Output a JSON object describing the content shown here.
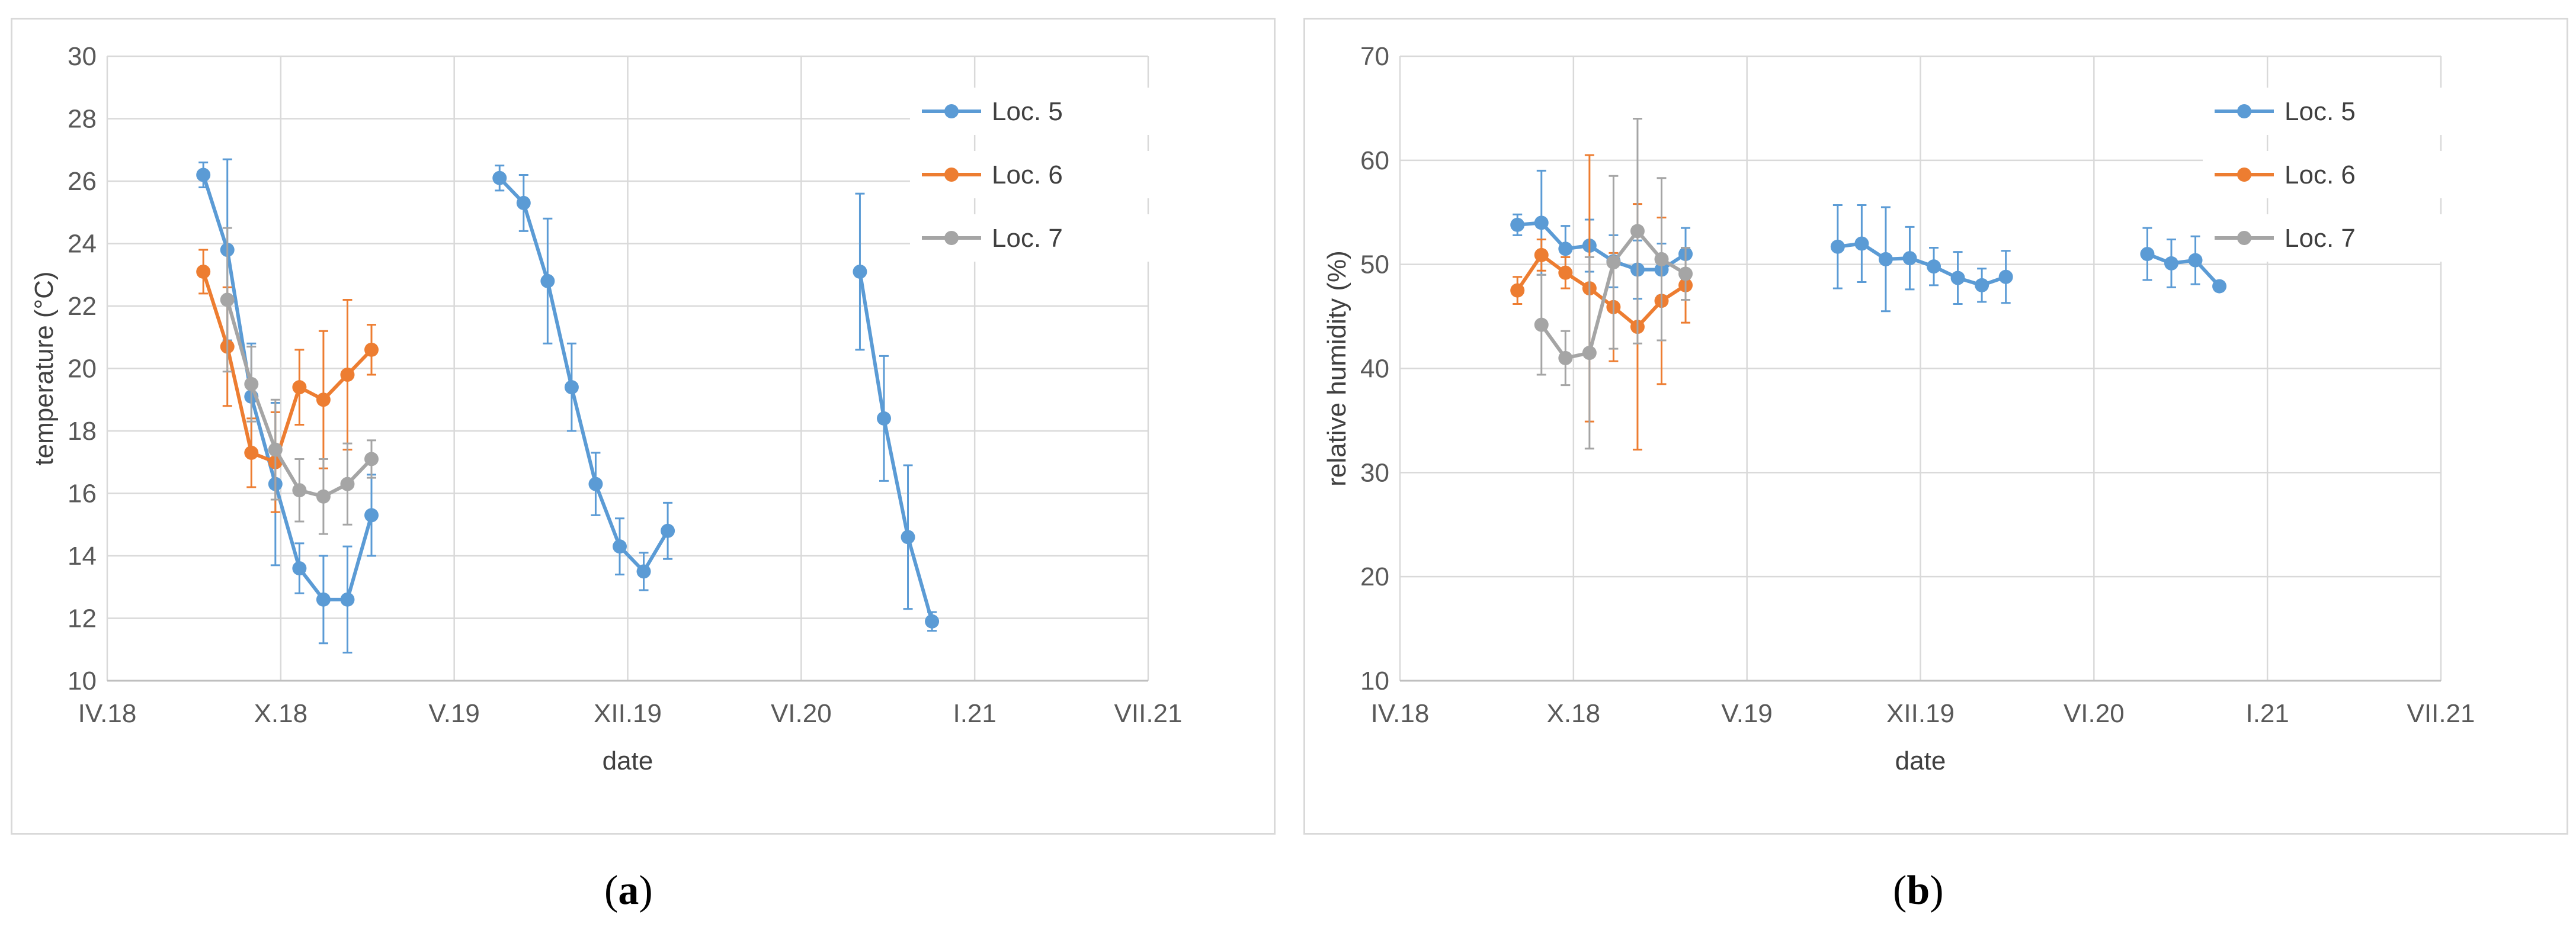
{
  "colors": {
    "loc5": "#5b9bd5",
    "loc6": "#ed7d31",
    "loc7": "#a5a5a5",
    "grid": "#d9d9d9",
    "text": "#595959"
  },
  "captions": {
    "a_letter": "a",
    "b_letter": "b"
  },
  "chart_data": [
    {
      "type": "line",
      "panel": "a",
      "title": "",
      "xlabel": "date",
      "ylabel": "temperature (°C)",
      "x_ticks": [
        "IV.18",
        "X.18",
        "V.19",
        "XII.19",
        "VI.20",
        "I.21",
        "VII.21"
      ],
      "x_range_months": [
        0,
        39
      ],
      "ylim": [
        10,
        30
      ],
      "y_ticks": [
        10,
        12,
        14,
        16,
        18,
        20,
        22,
        24,
        26,
        28,
        30
      ],
      "grid": true,
      "legend_position": "top-right",
      "series": [
        {
          "name": "Loc. 5",
          "color_key": "loc5",
          "segments": [
            [
              {
                "x": 3.6,
                "y": 26.2,
                "err": 0.4
              },
              {
                "x": 4.5,
                "y": 23.8,
                "err": 2.9
              },
              {
                "x": 5.4,
                "y": 19.1,
                "err": 1.7
              },
              {
                "x": 6.3,
                "y": 16.3,
                "err": 2.6
              },
              {
                "x": 7.2,
                "y": 13.6,
                "err": 0.8
              },
              {
                "x": 8.1,
                "y": 12.6,
                "err": 1.4
              },
              {
                "x": 9.0,
                "y": 12.6,
                "err": 1.7
              },
              {
                "x": 9.9,
                "y": 15.3,
                "err": 1.3
              }
            ],
            [
              {
                "x": 14.7,
                "y": 26.1,
                "err": 0.4
              },
              {
                "x": 15.6,
                "y": 25.3,
                "err": 0.9
              },
              {
                "x": 16.5,
                "y": 22.8,
                "err": 2.0
              },
              {
                "x": 17.4,
                "y": 19.4,
                "err": 1.4
              },
              {
                "x": 18.3,
                "y": 16.3,
                "err": 1.0
              },
              {
                "x": 19.2,
                "y": 14.3,
                "err": 0.9
              },
              {
                "x": 20.1,
                "y": 13.5,
                "err": 0.6
              },
              {
                "x": 21.0,
                "y": 14.8,
                "err": 0.9
              }
            ],
            [
              {
                "x": 28.2,
                "y": 23.1,
                "err": 2.5
              },
              {
                "x": 29.1,
                "y": 18.4,
                "err": 2.0
              },
              {
                "x": 30.0,
                "y": 14.6,
                "err": 2.3
              },
              {
                "x": 30.9,
                "y": 11.9,
                "err": 0.3
              }
            ]
          ]
        },
        {
          "name": "Loc. 6",
          "color_key": "loc6",
          "segments": [
            [
              {
                "x": 3.6,
                "y": 23.1,
                "err": 0.7
              },
              {
                "x": 4.5,
                "y": 20.7,
                "err": 1.9
              },
              {
                "x": 5.4,
                "y": 17.3,
                "err": 1.1
              },
              {
                "x": 6.3,
                "y": 17.0,
                "err": 1.6
              },
              {
                "x": 7.2,
                "y": 19.4,
                "err": 1.2
              },
              {
                "x": 8.1,
                "y": 19.0,
                "err": 2.2
              },
              {
                "x": 9.0,
                "y": 19.8,
                "err": 2.4
              },
              {
                "x": 9.9,
                "y": 20.6,
                "err": 0.8
              }
            ]
          ]
        },
        {
          "name": "Loc. 7",
          "color_key": "loc7",
          "segments": [
            [
              {
                "x": 4.5,
                "y": 22.2,
                "err": 2.3
              },
              {
                "x": 5.4,
                "y": 19.5,
                "err": 1.2
              },
              {
                "x": 6.3,
                "y": 17.4,
                "err": 1.6
              },
              {
                "x": 7.2,
                "y": 16.1,
                "err": 1.0
              },
              {
                "x": 8.1,
                "y": 15.9,
                "err": 1.2
              },
              {
                "x": 9.0,
                "y": 16.3,
                "err": 1.3
              },
              {
                "x": 9.9,
                "y": 17.1,
                "err": 0.6
              }
            ]
          ]
        }
      ]
    },
    {
      "type": "line",
      "panel": "b",
      "title": "",
      "xlabel": "date",
      "ylabel": "relative humidity (%)",
      "x_ticks": [
        "IV.18",
        "X.18",
        "V.19",
        "XII.19",
        "VI.20",
        "I.21",
        "VII.21"
      ],
      "x_range_months": [
        0,
        39
      ],
      "ylim": [
        10,
        70
      ],
      "y_ticks": [
        10,
        20,
        30,
        40,
        50,
        60,
        70
      ],
      "grid": true,
      "legend_position": "top-right",
      "series": [
        {
          "name": "Loc. 5",
          "color_key": "loc5",
          "segments": [
            [
              {
                "x": 4.4,
                "y": 53.8,
                "err": 1.0
              },
              {
                "x": 5.3,
                "y": 54.0,
                "err": 5.0
              },
              {
                "x": 6.2,
                "y": 51.5,
                "err": 2.2
              },
              {
                "x": 7.1,
                "y": 51.8,
                "err": 2.5
              },
              {
                "x": 8.0,
                "y": 50.3,
                "err": 2.5
              },
              {
                "x": 8.9,
                "y": 49.5,
                "err": 2.8
              },
              {
                "x": 9.8,
                "y": 49.5,
                "err": 2.5
              },
              {
                "x": 10.7,
                "y": 51.0,
                "err": 2.5
              }
            ],
            [
              {
                "x": 16.4,
                "y": 51.7,
                "err": 4.0
              },
              {
                "x": 17.3,
                "y": 52.0,
                "err": 3.7
              },
              {
                "x": 18.2,
                "y": 50.5,
                "err": 5.0
              },
              {
                "x": 19.1,
                "y": 50.6,
                "err": 3.0
              },
              {
                "x": 20.0,
                "y": 49.8,
                "err": 1.8
              },
              {
                "x": 20.9,
                "y": 48.7,
                "err": 2.5
              },
              {
                "x": 21.8,
                "y": 48.0,
                "err": 1.6
              },
              {
                "x": 22.7,
                "y": 48.8,
                "err": 2.5
              }
            ],
            [
              {
                "x": 28.0,
                "y": 51.0,
                "err": 2.5
              },
              {
                "x": 28.9,
                "y": 50.1,
                "err": 2.3
              },
              {
                "x": 29.8,
                "y": 50.4,
                "err": 2.3
              },
              {
                "x": 30.7,
                "y": 47.9,
                "err": 0.3
              }
            ]
          ]
        },
        {
          "name": "Loc. 6",
          "color_key": "loc6",
          "segments": [
            [
              {
                "x": 4.4,
                "y": 47.5,
                "err": 1.3
              },
              {
                "x": 5.3,
                "y": 50.9,
                "err": 1.5
              },
              {
                "x": 6.2,
                "y": 49.2,
                "err": 1.5
              },
              {
                "x": 7.1,
                "y": 47.7,
                "err": 12.8
              },
              {
                "x": 8.0,
                "y": 45.9,
                "err": 5.2
              },
              {
                "x": 8.9,
                "y": 44.0,
                "err": 11.8
              },
              {
                "x": 9.8,
                "y": 46.5,
                "err": 8.0
              },
              {
                "x": 10.7,
                "y": 48.0,
                "err": 3.6
              }
            ]
          ]
        },
        {
          "name": "Loc. 7",
          "color_key": "loc7",
          "segments": [
            [
              {
                "x": 5.3,
                "y": 44.2,
                "err": 4.8
              },
              {
                "x": 6.2,
                "y": 41.0,
                "err": 2.6
              },
              {
                "x": 7.1,
                "y": 41.5,
                "err": 9.2
              },
              {
                "x": 8.0,
                "y": 50.2,
                "err": 8.3
              },
              {
                "x": 8.9,
                "y": 53.2,
                "err": 10.8
              },
              {
                "x": 9.8,
                "y": 50.5,
                "err": 7.8
              },
              {
                "x": 10.7,
                "y": 49.1,
                "err": 2.5
              }
            ]
          ]
        }
      ]
    }
  ]
}
